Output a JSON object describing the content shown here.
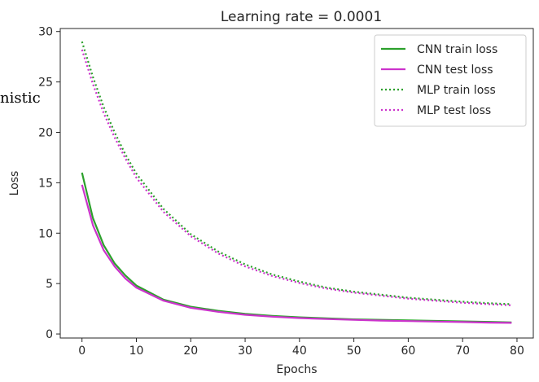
{
  "chart_data": {
    "type": "line",
    "title": "Learning rate = 0.0001",
    "xlabel": "Epochs",
    "ylabel": "Loss",
    "xlim": [
      -4,
      83
    ],
    "ylim": [
      -0.4,
      30.3
    ],
    "xticks": [
      0,
      10,
      20,
      30,
      40,
      50,
      60,
      70,
      80
    ],
    "yticks": [
      0,
      5,
      10,
      15,
      20,
      25,
      30
    ],
    "grid": false,
    "legend_position": "top-right",
    "series": [
      {
        "name": "CNN train loss",
        "color": "#2ca02c",
        "style": "solid",
        "x": [
          0,
          2,
          4,
          6,
          8,
          10,
          15,
          20,
          25,
          30,
          35,
          40,
          45,
          50,
          55,
          60,
          65,
          70,
          75,
          79
        ],
        "values": [
          16.0,
          11.5,
          8.8,
          7.0,
          5.8,
          4.8,
          3.4,
          2.7,
          2.3,
          2.0,
          1.8,
          1.65,
          1.55,
          1.45,
          1.4,
          1.35,
          1.3,
          1.25,
          1.2,
          1.15
        ]
      },
      {
        "name": "CNN test loss",
        "color": "#cc33cc",
        "style": "solid",
        "x": [
          0,
          2,
          4,
          6,
          8,
          10,
          15,
          20,
          25,
          30,
          35,
          40,
          45,
          50,
          55,
          60,
          65,
          70,
          75,
          79
        ],
        "values": [
          14.8,
          10.8,
          8.3,
          6.7,
          5.5,
          4.6,
          3.3,
          2.6,
          2.2,
          1.9,
          1.72,
          1.58,
          1.48,
          1.4,
          1.33,
          1.28,
          1.23,
          1.18,
          1.13,
          1.1
        ]
      },
      {
        "name": "MLP train loss",
        "color": "#2ca02c",
        "style": "dotted",
        "x": [
          0,
          2,
          4,
          6,
          8,
          10,
          15,
          20,
          25,
          30,
          35,
          40,
          45,
          50,
          55,
          60,
          65,
          70,
          75,
          79
        ],
        "values": [
          29.0,
          25.5,
          22.5,
          20.0,
          17.8,
          15.9,
          12.4,
          9.9,
          8.2,
          6.9,
          5.9,
          5.2,
          4.6,
          4.2,
          3.9,
          3.6,
          3.4,
          3.2,
          3.05,
          2.95
        ]
      },
      {
        "name": "MLP test loss",
        "color": "#cc33cc",
        "style": "dotted",
        "x": [
          0,
          2,
          4,
          6,
          8,
          10,
          15,
          20,
          25,
          30,
          35,
          40,
          45,
          50,
          55,
          60,
          65,
          70,
          75,
          79
        ],
        "values": [
          28.2,
          24.8,
          21.9,
          19.5,
          17.4,
          15.5,
          12.1,
          9.7,
          8.0,
          6.7,
          5.75,
          5.05,
          4.5,
          4.1,
          3.8,
          3.5,
          3.3,
          3.1,
          2.95,
          2.85
        ]
      }
    ]
  },
  "overlay_text": "nistic"
}
